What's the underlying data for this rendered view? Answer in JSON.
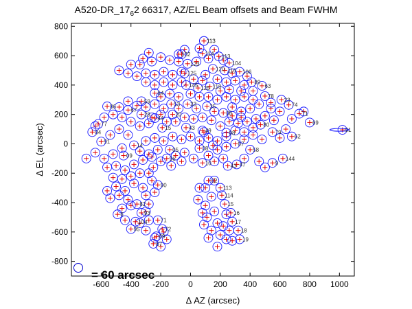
{
  "figure": {
    "title": "A520-DR_17",
    "title_sub": "6",
    "title_rest": "2 66317, AZ/EL Beam offsets and Beam FWHM",
    "scale_note": "= 60 arcsec"
  },
  "chart_data": {
    "type": "scatter",
    "title": "A520-DR_17_6 2 66317, AZ/EL Beam offsets and Beam FWHM",
    "xlabel": "Δ AZ (arcsec)",
    "ylabel": "Δ EL (arcsec)",
    "xlim": [
      -800,
      1100
    ],
    "ylim": [
      -900,
      820
    ],
    "xticks": [
      -600,
      -400,
      -200,
      0,
      200,
      400,
      600,
      800,
      1000
    ],
    "yticks": [
      -800,
      -600,
      -400,
      -200,
      0,
      200,
      400,
      600,
      800
    ],
    "marker_fwhm_arcsec": 60,
    "points": [
      {
        "label": "113",
        "az": 90,
        "el": 700,
        "fwhm": 60
      },
      {
        "label": "114",
        "az": 80,
        "el": 615,
        "fwhm": 60
      },
      {
        "label": "113",
        "az": 90,
        "el": 700,
        "fwhm": 60
      },
      {
        "label": "132",
        "az": -80,
        "el": 610,
        "fwhm": 60
      },
      {
        "label": "123",
        "az": -20,
        "el": 545,
        "fwhm": 60
      },
      {
        "label": "113",
        "az": 190,
        "el": 595,
        "fwhm": 60
      },
      {
        "label": "104",
        "az": 260,
        "el": 550,
        "fwhm": 60
      },
      {
        "label": "125",
        "az": -40,
        "el": 480,
        "fwhm": 60
      },
      {
        "label": "120",
        "az": 150,
        "el": 510,
        "fwhm": 60
      },
      {
        "label": "116",
        "az": 230,
        "el": 500,
        "fwhm": 60
      },
      {
        "label": "106",
        "az": 330,
        "el": 490,
        "fwhm": 60
      },
      {
        "label": "89",
        "az": 410,
        "el": 420,
        "fwhm": 60
      },
      {
        "label": "63",
        "az": 480,
        "el": 395,
        "fwhm": 60
      },
      {
        "label": "145",
        "az": -30,
        "el": 400,
        "fwhm": 60
      },
      {
        "label": "125",
        "az": 50,
        "el": 380,
        "fwhm": 60
      },
      {
        "label": "118",
        "az": 130,
        "el": 390,
        "fwhm": 60
      },
      {
        "label": "78",
        "az": 500,
        "el": 325,
        "fwhm": 60
      },
      {
        "label": "64",
        "az": -240,
        "el": 345,
        "fwhm": 60
      },
      {
        "label": "59",
        "az": -330,
        "el": 290,
        "fwhm": 60
      },
      {
        "label": "23",
        "az": 610,
        "el": 300,
        "fwhm": 60
      },
      {
        "label": "53",
        "az": -130,
        "el": 270,
        "fwhm": 60
      },
      {
        "label": "33",
        "az": -20,
        "el": 270,
        "fwhm": 60
      },
      {
        "label": "35",
        "az": 110,
        "el": 255,
        "fwhm": 60
      },
      {
        "label": "86",
        "az": -560,
        "el": 255,
        "fwhm": 60
      },
      {
        "label": "74",
        "az": 660,
        "el": 265,
        "fwhm": 60
      },
      {
        "label": "67",
        "az": -420,
        "el": 230,
        "fwhm": 60
      },
      {
        "label": "28",
        "az": -330,
        "el": 200,
        "fwhm": 60
      },
      {
        "label": "44",
        "az": -240,
        "el": 175,
        "fwhm": 60
      },
      {
        "label": "20",
        "az": -120,
        "el": 200,
        "fwhm": 60
      },
      {
        "label": "08",
        "az": 220,
        "el": 210,
        "fwhm": 60
      },
      {
        "label": "71",
        "az": 730,
        "el": 205,
        "fwhm": 60
      },
      {
        "label": "69",
        "az": 800,
        "el": 145,
        "fwhm": 60
      },
      {
        "label": "77",
        "az": -620,
        "el": 135,
        "fwhm": 60
      },
      {
        "label": "15",
        "az": -190,
        "el": 110,
        "fwhm": 60
      },
      {
        "label": "43",
        "az": -30,
        "el": 110,
        "fwhm": 60
      },
      {
        "label": "49",
        "az": 80,
        "el": 90,
        "fwhm": 60
      },
      {
        "label": "98",
        "az": 240,
        "el": 75,
        "fwhm": 60
      },
      {
        "label": "80",
        "az": 470,
        "el": 130,
        "fwhm": 60
      },
      {
        "label": "79",
        "az": 550,
        "el": 80,
        "fwhm": 60
      },
      {
        "label": "62",
        "az": 680,
        "el": 50,
        "fwhm": 60
      },
      {
        "label": "91",
        "az": 1020,
        "el": 95,
        "fwhm": 60
      },
      {
        "label": "84",
        "az": -660,
        "el": 80,
        "fwhm": 60
      },
      {
        "label": "91",
        "az": -600,
        "el": 15,
        "fwhm": 60
      },
      {
        "label": "14",
        "az": -380,
        "el": -10,
        "fwhm": 60
      },
      {
        "label": "05",
        "az": -140,
        "el": -40,
        "fwhm": 60
      },
      {
        "label": "08",
        "az": 60,
        "el": -30,
        "fwhm": 60
      },
      {
        "label": "07",
        "az": 300,
        "el": 0,
        "fwhm": 60
      },
      {
        "label": "58",
        "az": 400,
        "el": -40,
        "fwhm": 60
      },
      {
        "label": "09",
        "az": -450,
        "el": -80,
        "fwhm": 60
      },
      {
        "label": "96",
        "az": -160,
        "el": -100,
        "fwhm": 60
      },
      {
        "label": "10",
        "az": 80,
        "el": -130,
        "fwhm": 60
      },
      {
        "label": "47",
        "az": 310,
        "el": -140,
        "fwhm": 60
      },
      {
        "label": "144",
        "az": 620,
        "el": -100,
        "fwhm": 60
      },
      {
        "label": "9",
        "az": 550,
        "el": -130,
        "fwhm": 60
      },
      {
        "label": "43",
        "az": 250,
        "el": -150,
        "fwhm": 60
      },
      {
        "label": "02",
        "az": 120,
        "el": -250,
        "fwhm": 60
      },
      {
        "label": "90",
        "az": -220,
        "el": -280,
        "fwhm": 60
      },
      {
        "label": "113",
        "az": 200,
        "el": -300,
        "fwhm": 60
      },
      {
        "label": "114",
        "az": 210,
        "el": -350,
        "fwhm": 60
      },
      {
        "label": "15",
        "az": 230,
        "el": -410,
        "fwhm": 60
      },
      {
        "label": "16",
        "az": 270,
        "el": -470,
        "fwhm": 60
      },
      {
        "label": "17",
        "az": 280,
        "el": -530,
        "fwhm": 60
      },
      {
        "label": "18",
        "az": 320,
        "el": -590,
        "fwhm": 60
      },
      {
        "label": "19",
        "az": 330,
        "el": -650,
        "fwhm": 60
      },
      {
        "label": "82",
        "az": -360,
        "el": -410,
        "fwhm": 60
      },
      {
        "label": "93",
        "az": -330,
        "el": -470,
        "fwhm": 60
      },
      {
        "label": "104",
        "az": -370,
        "el": -530,
        "fwhm": 60
      },
      {
        "label": "95",
        "az": -400,
        "el": -580,
        "fwhm": 60
      },
      {
        "label": "71",
        "az": -220,
        "el": -520,
        "fwhm": 60
      },
      {
        "label": "72",
        "az": -190,
        "el": -580,
        "fwhm": 60
      },
      {
        "label": "69",
        "az": -230,
        "el": -630,
        "fwhm": 60
      },
      {
        "label": "67",
        "az": -250,
        "el": -680,
        "fwhm": 60
      },
      {
        "label": "6",
        "az": -490,
        "el": -480,
        "fwhm": 60
      }
    ],
    "extra_beams": [
      {
        "az": -700,
        "el": -100
      },
      {
        "az": -640,
        "el": -60
      },
      {
        "az": -580,
        "el": -100
      },
      {
        "az": -520,
        "el": -70
      },
      {
        "az": -460,
        "el": -30
      },
      {
        "az": -560,
        "el": -160
      },
      {
        "az": -500,
        "el": -150
      },
      {
        "az": -440,
        "el": -180
      },
      {
        "az": -380,
        "el": -140
      },
      {
        "az": -320,
        "el": -110
      },
      {
        "az": -260,
        "el": -90
      },
      {
        "az": -200,
        "el": -120
      },
      {
        "az": -560,
        "el": -320
      },
      {
        "az": -500,
        "el": -290
      },
      {
        "az": -440,
        "el": -320
      },
      {
        "az": -380,
        "el": -270
      },
      {
        "az": -320,
        "el": -300
      },
      {
        "az": -260,
        "el": -250
      },
      {
        "az": -540,
        "el": -370
      },
      {
        "az": -480,
        "el": -350
      },
      {
        "az": -420,
        "el": -380
      },
      {
        "az": -300,
        "el": -350
      },
      {
        "az": -240,
        "el": -330
      },
      {
        "az": -460,
        "el": -440
      },
      {
        "az": -400,
        "el": -420
      },
      {
        "az": -280,
        "el": -410
      },
      {
        "az": -300,
        "el": -460
      },
      {
        "az": -160,
        "el": -650
      },
      {
        "az": -200,
        "el": -700
      },
      {
        "az": -300,
        "el": -590
      },
      {
        "az": 100,
        "el": -300
      },
      {
        "az": 140,
        "el": -360
      },
      {
        "az": 100,
        "el": -420
      },
      {
        "az": 160,
        "el": -460
      },
      {
        "az": 110,
        "el": -500
      },
      {
        "az": 180,
        "el": -540
      },
      {
        "az": 140,
        "el": -590
      },
      {
        "az": 200,
        "el": -620
      },
      {
        "az": 240,
        "el": -650
      },
      {
        "az": 260,
        "el": -590
      },
      {
        "az": 280,
        "el": -660
      },
      {
        "az": 220,
        "el": -560
      },
      {
        "az": 160,
        "el": -250
      },
      {
        "az": 60,
        "el": -300
      },
      {
        "az": 240,
        "el": -480
      },
      {
        "az": -100,
        "el": -80
      },
      {
        "az": -40,
        "el": -60
      },
      {
        "az": 20,
        "el": -100
      },
      {
        "az": 120,
        "el": -80
      },
      {
        "az": 180,
        "el": -40
      },
      {
        "az": 240,
        "el": -20
      },
      {
        "az": -220,
        "el": -40
      },
      {
        "az": -280,
        "el": -70
      },
      {
        "az": -340,
        "el": -50
      },
      {
        "az": -300,
        "el": 20
      },
      {
        "az": -240,
        "el": 40
      },
      {
        "az": -180,
        "el": 20
      },
      {
        "az": -120,
        "el": 50
      },
      {
        "az": -60,
        "el": 30
      },
      {
        "az": 0,
        "el": 50
      },
      {
        "az": 60,
        "el": 20
      },
      {
        "az": 120,
        "el": 40
      },
      {
        "az": 180,
        "el": 20
      },
      {
        "az": 240,
        "el": 50
      },
      {
        "az": 360,
        "el": 30
      },
      {
        "az": 420,
        "el": 60
      },
      {
        "az": 480,
        "el": 30
      },
      {
        "az": 600,
        "el": 40
      },
      {
        "az": 640,
        "el": 100
      },
      {
        "az": 560,
        "el": 160
      },
      {
        "az": 500,
        "el": 190
      },
      {
        "az": 440,
        "el": 170
      },
      {
        "az": 380,
        "el": 150
      },
      {
        "az": 320,
        "el": 140
      },
      {
        "az": 260,
        "el": 150
      },
      {
        "az": 200,
        "el": 120
      },
      {
        "az": 140,
        "el": 160
      },
      {
        "az": 80,
        "el": 180
      },
      {
        "az": 20,
        "el": 170
      },
      {
        "az": -40,
        "el": 180
      },
      {
        "az": -100,
        "el": 150
      },
      {
        "az": -160,
        "el": 150
      },
      {
        "az": -280,
        "el": 140
      },
      {
        "az": -340,
        "el": 120
      },
      {
        "az": -400,
        "el": 150
      },
      {
        "az": -460,
        "el": 180
      },
      {
        "az": -520,
        "el": 200
      },
      {
        "az": -580,
        "el": 180
      },
      {
        "az": -640,
        "el": 120
      },
      {
        "az": -480,
        "el": 250
      },
      {
        "az": -420,
        "el": 290
      },
      {
        "az": -360,
        "el": 260
      },
      {
        "az": -300,
        "el": 250
      },
      {
        "az": -240,
        "el": 270
      },
      {
        "az": -180,
        "el": 240
      },
      {
        "az": -80,
        "el": 240
      },
      {
        "az": 40,
        "el": 240
      },
      {
        "az": 160,
        "el": 220
      },
      {
        "az": 280,
        "el": 250
      },
      {
        "az": 340,
        "el": 220
      },
      {
        "az": 400,
        "el": 240
      },
      {
        "az": 460,
        "el": 270
      },
      {
        "az": 540,
        "el": 240
      },
      {
        "az": 600,
        "el": 220
      },
      {
        "az": 680,
        "el": 170
      },
      {
        "az": 760,
        "el": 220
      },
      {
        "az": -200,
        "el": 320
      },
      {
        "az": -140,
        "el": 340
      },
      {
        "az": -80,
        "el": 320
      },
      {
        "az": 0,
        "el": 340
      },
      {
        "az": 60,
        "el": 320
      },
      {
        "az": 120,
        "el": 320
      },
      {
        "az": 180,
        "el": 300
      },
      {
        "az": 240,
        "el": 320
      },
      {
        "az": 300,
        "el": 300
      },
      {
        "az": 360,
        "el": 320
      },
      {
        "az": 420,
        "el": 300
      },
      {
        "az": 540,
        "el": 280
      },
      {
        "az": -300,
        "el": 420
      },
      {
        "az": -240,
        "el": 400
      },
      {
        "az": -180,
        "el": 420
      },
      {
        "az": -120,
        "el": 400
      },
      {
        "az": -60,
        "el": 420
      },
      {
        "az": 20,
        "el": 440
      },
      {
        "az": 80,
        "el": 430
      },
      {
        "az": 180,
        "el": 440
      },
      {
        "az": 240,
        "el": 420
      },
      {
        "az": 300,
        "el": 430
      },
      {
        "az": 360,
        "el": 400
      },
      {
        "az": 420,
        "el": 360
      },
      {
        "az": 340,
        "el": 360
      },
      {
        "az": 260,
        "el": 370
      },
      {
        "az": 200,
        "el": 360
      },
      {
        "az": -360,
        "el": 460
      },
      {
        "az": -420,
        "el": 480
      },
      {
        "az": -300,
        "el": 480
      },
      {
        "az": -240,
        "el": 470
      },
      {
        "az": -180,
        "el": 490
      },
      {
        "az": -120,
        "el": 470
      },
      {
        "az": -60,
        "el": 490
      },
      {
        "az": 100,
        "el": 470
      },
      {
        "az": 280,
        "el": 480
      },
      {
        "az": 380,
        "el": 460
      },
      {
        "az": -480,
        "el": 500
      },
      {
        "az": -400,
        "el": 540
      },
      {
        "az": -340,
        "el": 540
      },
      {
        "az": -260,
        "el": 560
      },
      {
        "az": -200,
        "el": 590
      },
      {
        "az": -140,
        "el": 570
      },
      {
        "az": -80,
        "el": 560
      },
      {
        "az": 40,
        "el": 560
      },
      {
        "az": 120,
        "el": 580
      },
      {
        "az": 60,
        "el": 650
      },
      {
        "az": 160,
        "el": 640
      },
      {
        "az": 220,
        "el": 570
      },
      {
        "az": -40,
        "el": 640
      },
      {
        "az": -320,
        "el": 580
      },
      {
        "az": -280,
        "el": 620
      },
      {
        "az": -60,
        "el": 610
      },
      {
        "az": 340,
        "el": 180
      },
      {
        "az": 280,
        "el": 190
      },
      {
        "az": 420,
        "el": 110
      },
      {
        "az": 360,
        "el": 80
      },
      {
        "az": 300,
        "el": 90
      },
      {
        "az": 150,
        "el": -10
      },
      {
        "az": 90,
        "el": 80
      },
      {
        "az": -420,
        "el": 60
      },
      {
        "az": -480,
        "el": 100
      },
      {
        "az": -540,
        "el": 60
      },
      {
        "az": -260,
        "el": 180
      },
      {
        "az": -200,
        "el": 200
      },
      {
        "az": -60,
        "el": -120
      },
      {
        "az": -130,
        "el": -150
      },
      {
        "az": -250,
        "el": -160
      },
      {
        "az": -400,
        "el": -220
      },
      {
        "az": -460,
        "el": -240
      },
      {
        "az": -520,
        "el": -230
      },
      {
        "az": -340,
        "el": -200
      },
      {
        "az": -280,
        "el": -200
      },
      {
        "az": 160,
        "el": -120
      },
      {
        "az": 220,
        "el": -100
      },
      {
        "az": 360,
        "el": -100
      },
      {
        "az": 500,
        "el": -160
      },
      {
        "az": 460,
        "el": -120
      },
      {
        "az": 50,
        "el": -380
      },
      {
        "az": 80,
        "el": -470
      },
      {
        "az": 90,
        "el": -550
      },
      {
        "az": 120,
        "el": -640
      },
      {
        "az": 180,
        "el": -700
      },
      {
        "az": -340,
        "el": -540
      },
      {
        "az": -280,
        "el": -520
      },
      {
        "az": -440,
        "el": -520
      },
      {
        "az": -240,
        "el": -640
      },
      {
        "az": -180,
        "el": -600
      }
    ]
  }
}
